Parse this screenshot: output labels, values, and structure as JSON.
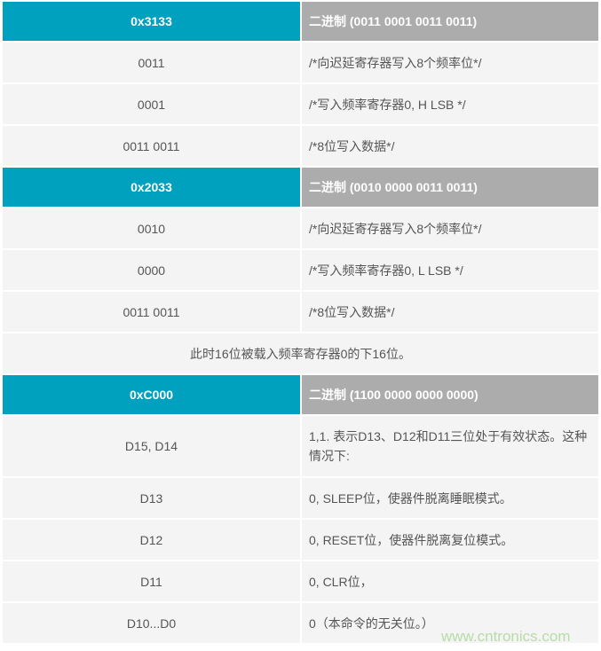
{
  "sections": [
    {
      "hex": "0x3133",
      "binary": "二进制 (0011 0001 0011 0011)",
      "rows": [
        [
          "0011",
          "/*向迟延寄存器写入8个频率位*/"
        ],
        [
          "0001",
          "/*写入频率寄存器0, H LSB */"
        ],
        [
          "0011 0011",
          "/*8位写入数据*/"
        ]
      ]
    },
    {
      "hex": "0x2033",
      "binary": "二进制 (0010 0000 0011 0011)",
      "rows": [
        [
          "0010",
          "/*向迟延寄存器写入8个频率位*/"
        ],
        [
          "0000",
          "/*写入频率寄存器0, L LSB */"
        ],
        [
          "0011 0011",
          "/*8位写入数据*/"
        ]
      ],
      "note": "此时16位被载入频率寄存器0的下16位。"
    },
    {
      "hex": "0xC000",
      "binary": "二进制 (1100 0000 0000 0000)",
      "rows": [
        [
          "D15, D14",
          "1,1. 表示D13、D12和D11三位处于有效状态。这种情况下:"
        ],
        [
          "D13",
          "0, SLEEP位，使器件脱离睡眠模式。"
        ],
        [
          "D12",
          "0, RESET位，使器件脱离复位模式。"
        ],
        [
          "D11",
          "0, CLR位，"
        ],
        [
          "D10...D0",
          "0（本命令的无关位。）"
        ]
      ]
    }
  ],
  "watermark": "www.cntronics.com",
  "colors": {
    "header_hex": "#00a0bf",
    "header_binary": "#acacac",
    "row_bg": "#f4f4f4",
    "text": "#555555"
  }
}
